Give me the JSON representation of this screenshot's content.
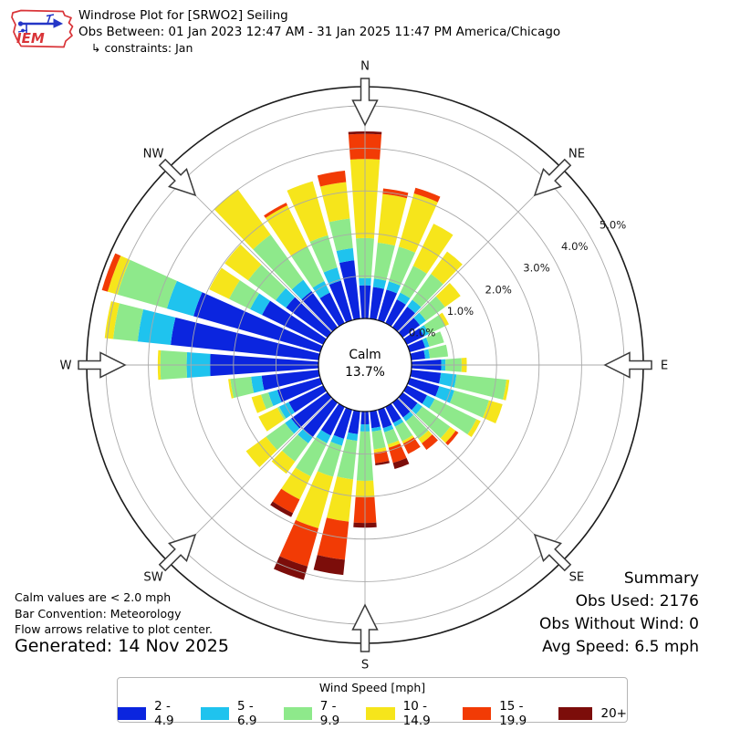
{
  "header": {
    "title": "Windrose Plot for [SRWO2] Seiling",
    "subtitle": "Obs Between: 01 Jan 2023 12:47 AM - 31 Jan 2025 11:47 PM America/Chicago",
    "constraints": "↳ constraints: Jan"
  },
  "logo": {
    "text": "IEM"
  },
  "compass_labels": [
    "N",
    "NE",
    "E",
    "SE",
    "S",
    "SW",
    "W",
    "NW"
  ],
  "radial_ticks": [
    "0.0%",
    "1.0%",
    "2.0%",
    "3.0%",
    "4.0%",
    "5.0%"
  ],
  "center": {
    "line1": "Calm",
    "line2": "13.7%"
  },
  "summary": {
    "title": "Summary",
    "obs_used": "Obs Used: 2176",
    "obs_without_wind": "Obs Without Wind: 0",
    "avg_speed": "Avg Speed: 6.5 mph"
  },
  "footnotes": [
    "Calm values are < 2.0 mph",
    "Bar Convention: Meteorology",
    "Flow arrows relative to plot center."
  ],
  "generated": "Generated: 14 Nov 2025",
  "legend": {
    "title": "Wind Speed [mph]",
    "items": [
      {
        "label": "2 - 4.9",
        "color": "#0b25df"
      },
      {
        "label": "5 - 6.9",
        "color": "#1fc3ee"
      },
      {
        "label": "7 - 9.9",
        "color": "#8ee98b"
      },
      {
        "label": "10 - 14.9",
        "color": "#f6e51b"
      },
      {
        "label": "15 - 19.9",
        "color": "#f23b05"
      },
      {
        "label": "20+",
        "color": "#7c0d0a"
      }
    ]
  },
  "chart_data": {
    "type": "windrose",
    "title": "Windrose Plot for [SRWO2] Seiling",
    "units": "percent frequency by wind speed [mph]",
    "calm_pct": 13.7,
    "bar_convention": "Meteorology",
    "direction_step_deg": 10,
    "directions_deg": [
      0,
      10,
      20,
      30,
      40,
      50,
      60,
      70,
      80,
      90,
      100,
      110,
      120,
      130,
      140,
      150,
      160,
      170,
      180,
      190,
      200,
      210,
      220,
      230,
      240,
      250,
      260,
      270,
      280,
      290,
      300,
      310,
      320,
      330,
      340,
      350
    ],
    "rings_pct": [
      1,
      2,
      3,
      4,
      5
    ],
    "speed_bins": [
      "2 - 4.9",
      "5 - 6.9",
      "7 - 9.9",
      "10 - 14.9",
      "15 - 19.9",
      "20+"
    ],
    "series": [
      {
        "name": "2 - 4.9",
        "color": "#0b25df",
        "values": [
          0.78,
          0.75,
          0.75,
          0.62,
          0.6,
          0.5,
          0.45,
          0.38,
          0.33,
          0.7,
          0.7,
          0.72,
          0.53,
          0.43,
          0.43,
          0.42,
          0.45,
          0.4,
          0.3,
          0.54,
          0.71,
          0.75,
          1.0,
          1.05,
          0.9,
          1.05,
          1.35,
          2.55,
          3.5,
          3.1,
          1.6,
          1.2,
          1.05,
          0.8,
          0.97,
          1.38
        ]
      },
      {
        "name": "5 - 6.9",
        "color": "#1fc3ee",
        "values": [
          0.17,
          0.2,
          0.2,
          0.18,
          0.2,
          0.18,
          0.13,
          0.1,
          0.11,
          0.1,
          0.37,
          0.37,
          0.2,
          0.14,
          0.11,
          0.1,
          0.1,
          0.08,
          0.17,
          0.16,
          0.17,
          0.2,
          0.18,
          0.18,
          0.25,
          0.22,
          0.25,
          0.55,
          0.78,
          0.65,
          0.31,
          0.3,
          0.33,
          0.3,
          0.32,
          0.29
        ]
      },
      {
        "name": "7 - 9.9",
        "color": "#8ee98b",
        "values": [
          0.94,
          0.85,
          0.85,
          0.7,
          0.75,
          0.55,
          0.42,
          0.36,
          0.43,
          0.38,
          1.18,
          0.85,
          1.09,
          0.81,
          0.51,
          0.38,
          0.3,
          0.42,
          1.16,
          0.91,
          0.76,
          0.87,
          0.53,
          0.55,
          0.05,
          0.18,
          0.49,
          0.62,
          0.58,
          1.21,
          0.55,
          0.8,
          1.31,
          0.91,
          0.79,
          0.7
        ]
      },
      {
        "name": "10 - 14.9",
        "color": "#f6e51b",
        "values": [
          1.86,
          1.15,
          1.3,
          1.1,
          0.65,
          0.45,
          0.1,
          0,
          0,
          0.12,
          0.07,
          0.33,
          0.11,
          0.16,
          0.13,
          0.06,
          0.08,
          0.08,
          0.39,
          1.0,
          1.26,
          0.6,
          0.35,
          0.58,
          0.49,
          0.23,
          0.05,
          0.06,
          0.2,
          0.24,
          0.52,
          0.68,
          1.32,
          1.07,
          1.32,
          0.86
        ]
      },
      {
        "name": "15 - 19.9",
        "color": "#f23b05",
        "values": [
          0.59,
          0.13,
          0.14,
          0,
          0,
          0,
          0,
          0,
          0,
          0,
          0,
          0,
          0,
          0.08,
          0.19,
          0.27,
          0.37,
          0.25,
          0.6,
          0.9,
          0.93,
          0.36,
          0,
          0,
          0,
          0,
          0,
          0,
          0,
          0.14,
          0,
          0,
          0,
          0.07,
          0,
          0.27
        ]
      },
      {
        "name": "20+",
        "color": "#7c0d0a",
        "values": [
          0.06,
          0,
          0,
          0,
          0,
          0,
          0,
          0,
          0,
          0,
          0,
          0,
          0,
          0,
          0,
          0,
          0.15,
          0.05,
          0.11,
          0.36,
          0.33,
          0.1,
          0,
          0,
          0,
          0,
          0,
          0,
          0,
          0,
          0,
          0,
          0,
          0,
          0,
          0
        ]
      }
    ]
  }
}
